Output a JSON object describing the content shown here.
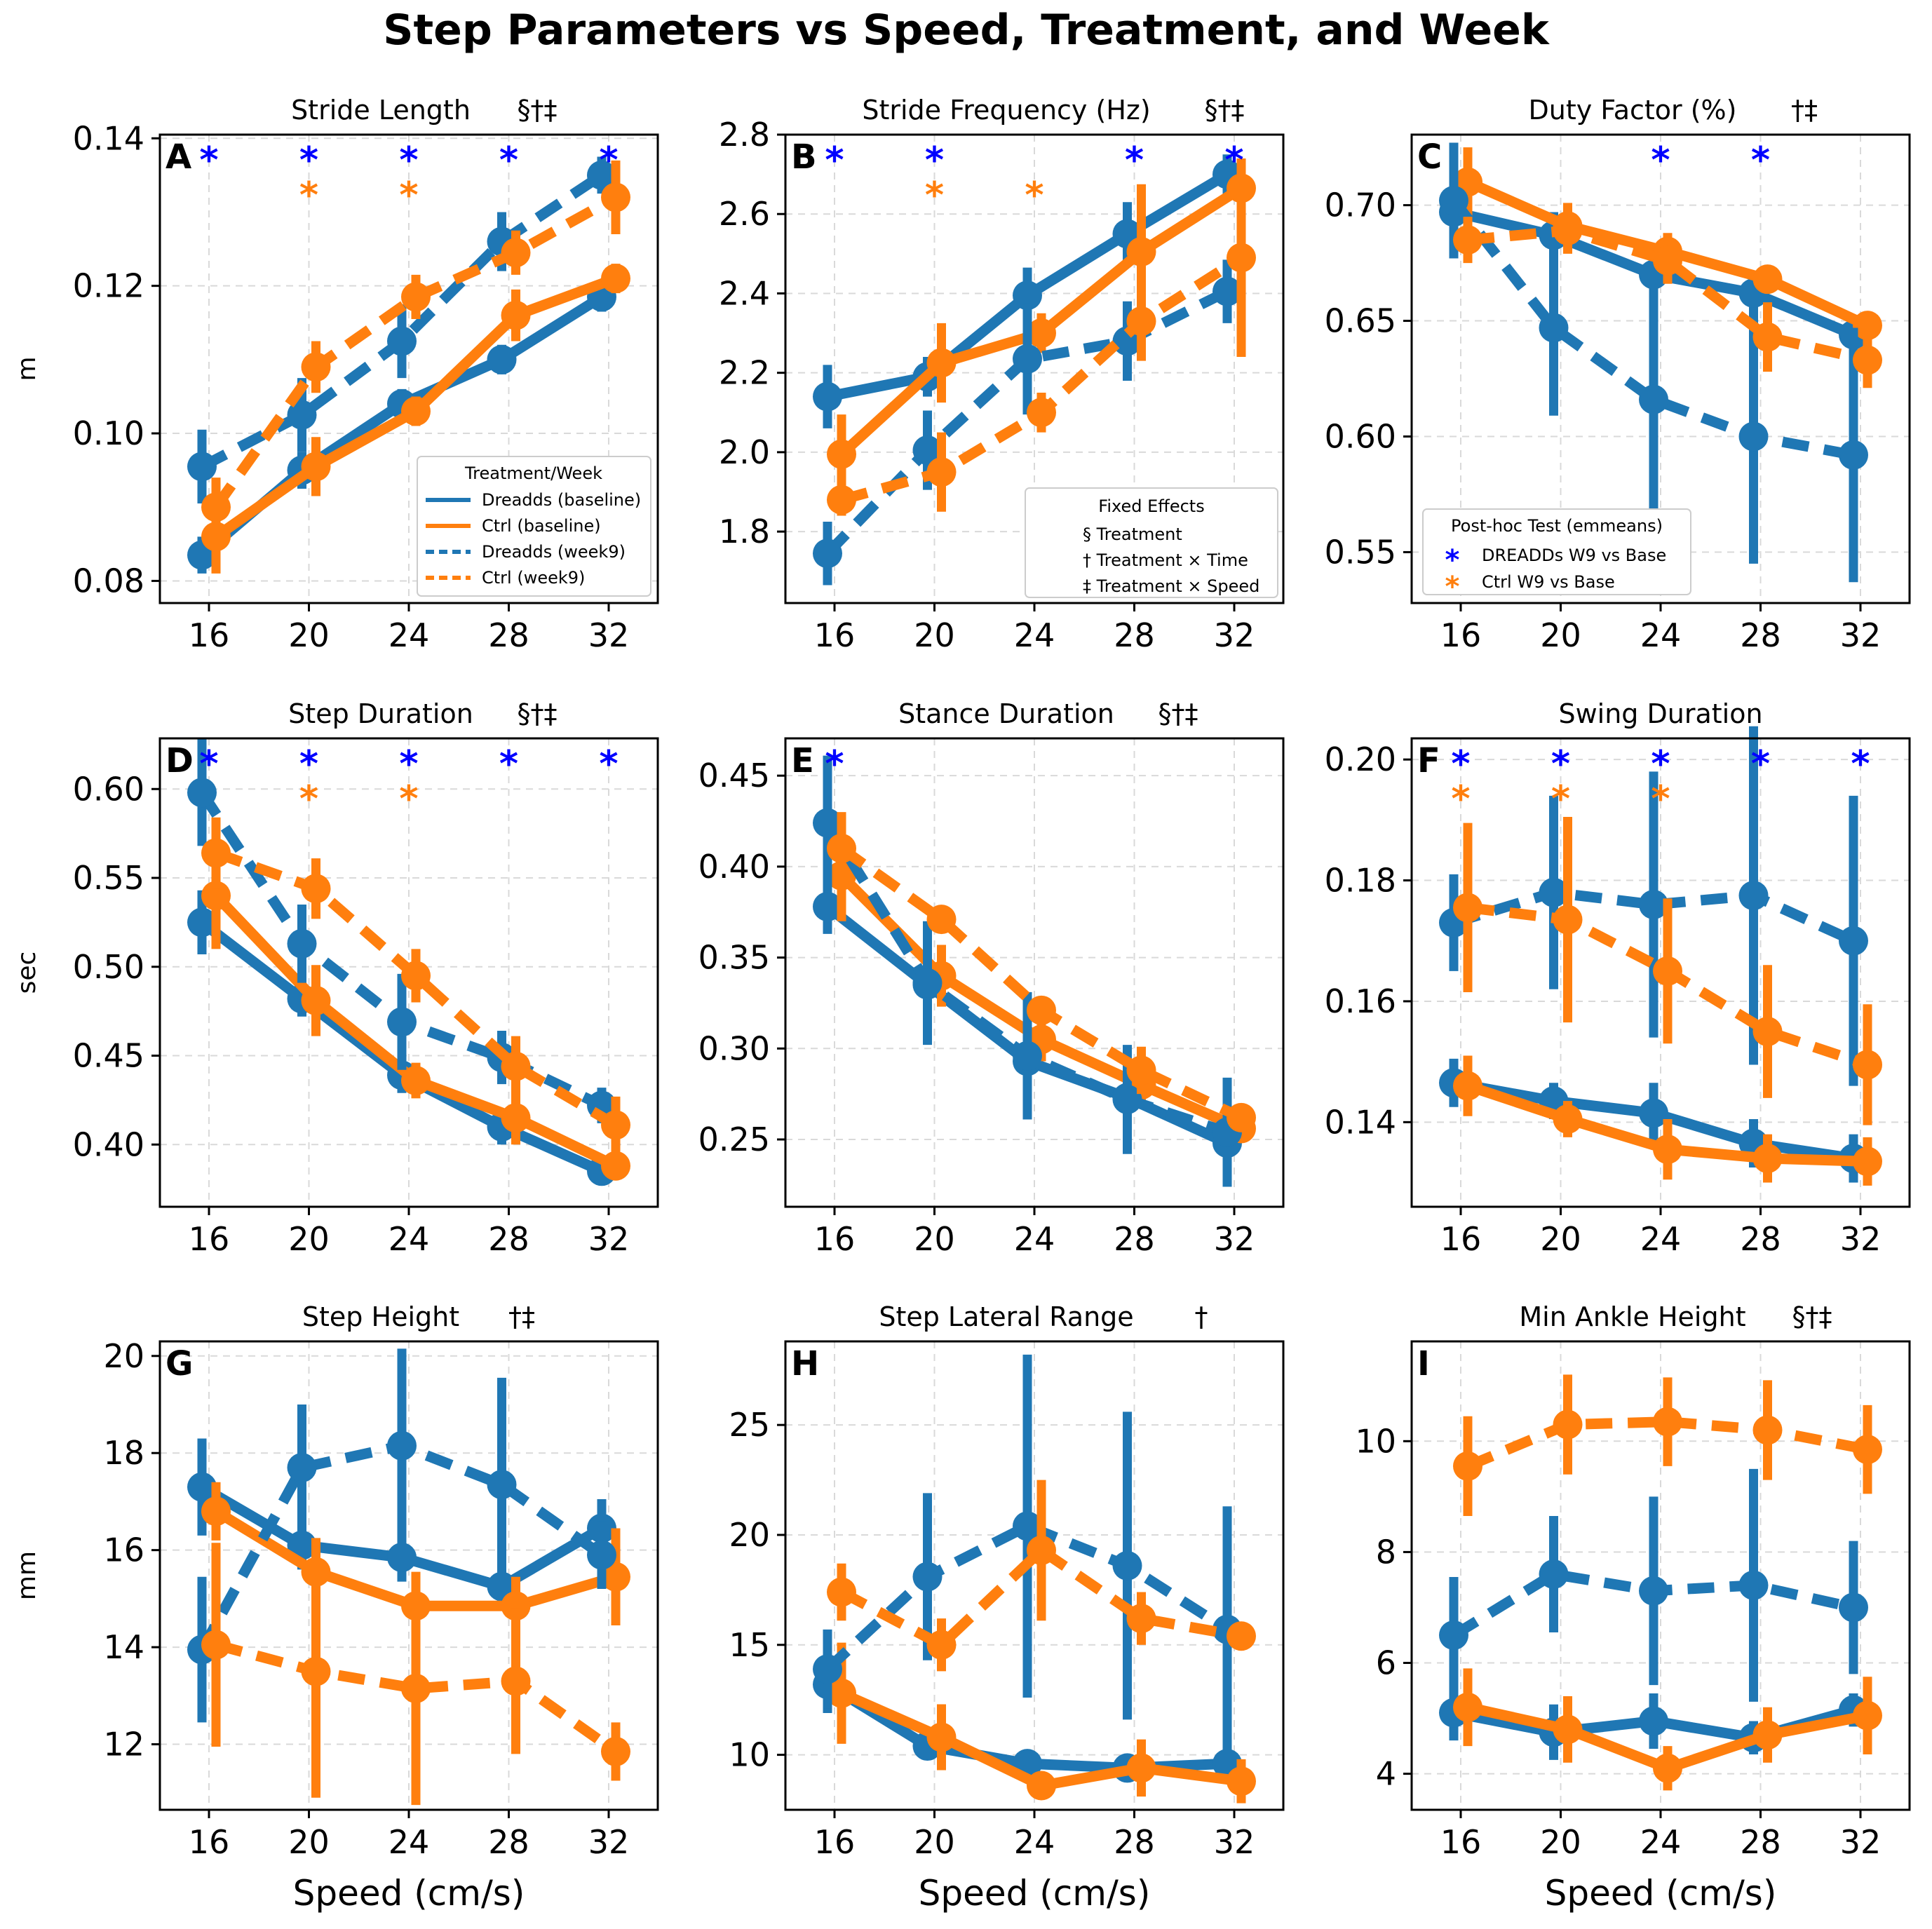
{
  "figure": {
    "title": "Step Parameters vs Speed, Treatment, and Week"
  },
  "colors": {
    "dreadds": "#1f77b4",
    "ctrl": "#ff7f0e",
    "sig_dreadds": "#0000ff",
    "sig_ctrl": "#ff7f0e",
    "grid": "#d9d9d9"
  },
  "legends": {
    "treatment_week": {
      "title": "Treatment/Week",
      "entries": [
        {
          "label": "Dreadds (baseline)",
          "series": "dreadds_base"
        },
        {
          "label": "Ctrl (baseline)",
          "series": "ctrl_base"
        },
        {
          "label": "Dreadds (week9)",
          "series": "dreadds_w9"
        },
        {
          "label": "Ctrl (week9)",
          "series": "ctrl_w9"
        }
      ]
    },
    "fixed_effects": {
      "title": "Fixed Effects",
      "entries": [
        "§ Treatment",
        "† Treatment × Time",
        "‡ Treatment × Speed"
      ]
    },
    "posthoc": {
      "title": "Post-hoc Test (emmeans)",
      "entries": [
        {
          "label": "DREADDs W9 vs Base",
          "marker": "*",
          "color": "sig_dreadds"
        },
        {
          "label": "Ctrl W9 vs Base",
          "marker": "*",
          "color": "sig_ctrl"
        }
      ]
    }
  },
  "chart_data": [
    {
      "id": "A",
      "letter": "A",
      "type": "line",
      "title": "Stride Length",
      "marks": "§†‡",
      "ylabel": "m",
      "xlabel": "",
      "ylim": [
        0.077,
        0.1405
      ],
      "yticks": [
        0.08,
        0.1,
        0.12,
        0.14
      ],
      "ytick_labels": [
        "0.08",
        "0.10",
        "0.12",
        "0.14"
      ],
      "categories": [
        "16",
        "20",
        "24",
        "28",
        "32"
      ],
      "series": [
        {
          "name": "Dreadds (baseline)",
          "values": [
            0.0835,
            0.095,
            0.104,
            0.11,
            0.1185
          ],
          "err": [
            0.0025,
            0.0025,
            0.002,
            0.002,
            0.002
          ]
        },
        {
          "name": "Ctrl (baseline)",
          "values": [
            0.086,
            0.0955,
            0.103,
            0.116,
            0.121
          ],
          "err": [
            0.005,
            0.004,
            0.002,
            0.0035,
            0.002
          ]
        },
        {
          "name": "Dreadds (week9)",
          "values": [
            0.0955,
            0.1025,
            0.1125,
            0.126,
            0.135
          ],
          "err": [
            0.005,
            0.005,
            0.005,
            0.004,
            0.0025
          ]
        },
        {
          "name": "Ctrl (week9)",
          "values": [
            0.09,
            0.109,
            0.1185,
            0.1245,
            0.132
          ],
          "err": [
            0.004,
            0.0035,
            0.003,
            0.003,
            0.005
          ]
        }
      ],
      "sig_dreadds": [
        "16",
        "20",
        "24",
        "28",
        "32"
      ],
      "sig_ctrl": [
        "20",
        "24"
      ],
      "legend": "treatment_week"
    },
    {
      "id": "B",
      "letter": "B",
      "type": "line",
      "title": "Stride Frequency (Hz)",
      "marks": "§†‡",
      "ylabel": "",
      "xlabel": "",
      "ylim": [
        1.62,
        2.8
      ],
      "yticks": [
        1.8,
        2.0,
        2.2,
        2.4,
        2.6,
        2.8
      ],
      "ytick_labels": [
        "1.8",
        "2.0",
        "2.2",
        "2.4",
        "2.6",
        "2.8"
      ],
      "categories": [
        "16",
        "20",
        "24",
        "28",
        "32"
      ],
      "series": [
        {
          "name": "Dreadds (baseline)",
          "values": [
            2.14,
            2.19,
            2.395,
            2.55,
            2.7
          ],
          "err": [
            0.08,
            0.05,
            0.07,
            0.08,
            0.05
          ]
        },
        {
          "name": "Ctrl (baseline)",
          "values": [
            1.995,
            2.225,
            2.3,
            2.505,
            2.665
          ],
          "err": [
            0.1,
            0.1,
            0.05,
            0.17,
            0.07
          ]
        },
        {
          "name": "Dreadds (week9)",
          "values": [
            1.745,
            2.005,
            2.235,
            2.28,
            2.405
          ],
          "err": [
            0.08,
            0.1,
            0.14,
            0.1,
            0.08
          ]
        },
        {
          "name": "Ctrl (week9)",
          "values": [
            1.88,
            1.95,
            2.1,
            2.33,
            2.49
          ],
          "err": [
            0.04,
            0.1,
            0.05,
            0.1,
            0.25
          ]
        }
      ],
      "sig_dreadds": [
        "16",
        "20",
        "28",
        "32"
      ],
      "sig_ctrl": [
        "20",
        "24"
      ],
      "legend": "fixed_effects"
    },
    {
      "id": "C",
      "letter": "C",
      "type": "line",
      "title": "Duty Factor (%)",
      "marks": "†‡",
      "ylabel": "",
      "xlabel": "",
      "ylim": [
        0.528,
        0.7305
      ],
      "yticks": [
        0.55,
        0.6,
        0.65,
        0.7
      ],
      "ytick_labels": [
        "0.55",
        "0.60",
        "0.65",
        "0.70"
      ],
      "categories": [
        "16",
        "20",
        "24",
        "28",
        "32"
      ],
      "series": [
        {
          "name": "Dreadds (baseline)",
          "values": [
            0.697,
            0.687,
            0.67,
            0.662,
            0.644
          ],
          "err": [
            0.01,
            0.01,
            0.01,
            0.008,
            0.006
          ]
        },
        {
          "name": "Ctrl (baseline)",
          "values": [
            0.71,
            0.691,
            0.68,
            0.668,
            0.648
          ],
          "err": [
            0.015,
            0.01,
            0.008,
            0.005,
            0.006
          ]
        },
        {
          "name": "Dreadds (week9)",
          "values": [
            0.702,
            0.647,
            0.616,
            0.6,
            0.592
          ],
          "err": [
            0.025,
            0.038,
            0.06,
            0.055,
            0.055
          ]
        },
        {
          "name": "Ctrl (week9)",
          "values": [
            0.685,
            0.689,
            0.676,
            0.643,
            0.633
          ],
          "err": [
            0.01,
            0.01,
            0.01,
            0.015,
            0.012
          ]
        }
      ],
      "sig_dreadds": [
        "24",
        "28"
      ],
      "sig_ctrl": [],
      "legend": "posthoc"
    },
    {
      "id": "D",
      "letter": "D",
      "type": "line",
      "title": "Step Duration",
      "marks": "§†‡",
      "ylabel": "sec",
      "xlabel": "",
      "ylim": [
        0.365,
        0.6285
      ],
      "yticks": [
        0.4,
        0.45,
        0.5,
        0.55,
        0.6
      ],
      "ytick_labels": [
        "0.40",
        "0.45",
        "0.50",
        "0.55",
        "0.60"
      ],
      "categories": [
        "16",
        "20",
        "24",
        "28",
        "32"
      ],
      "series": [
        {
          "name": "Dreadds (baseline)",
          "values": [
            0.525,
            0.482,
            0.439,
            0.41,
            0.385
          ],
          "err": [
            0.018,
            0.01,
            0.01,
            0.01,
            0.005
          ]
        },
        {
          "name": "Ctrl (baseline)",
          "values": [
            0.54,
            0.481,
            0.436,
            0.415,
            0.388
          ],
          "err": [
            0.03,
            0.02,
            0.01,
            0.015,
            0.007
          ]
        },
        {
          "name": "Dreadds (week9)",
          "values": [
            0.598,
            0.513,
            0.469,
            0.449,
            0.422
          ],
          "err": [
            0.03,
            0.022,
            0.027,
            0.015,
            0.01
          ]
        },
        {
          "name": "Ctrl (week9)",
          "values": [
            0.564,
            0.544,
            0.495,
            0.444,
            0.411
          ],
          "err": [
            0.02,
            0.017,
            0.015,
            0.017,
            0.016
          ]
        }
      ],
      "sig_dreadds": [
        "16",
        "20",
        "24",
        "28",
        "32"
      ],
      "sig_ctrl": [
        "20",
        "24"
      ],
      "legend": ""
    },
    {
      "id": "E",
      "letter": "E",
      "type": "line",
      "title": "Stance Duration",
      "marks": "§†‡",
      "ylabel": "",
      "xlabel": "",
      "ylim": [
        0.213,
        0.4705
      ],
      "yticks": [
        0.25,
        0.3,
        0.35,
        0.4,
        0.45
      ],
      "ytick_labels": [
        "0.25",
        "0.30",
        "0.35",
        "0.40",
        "0.45"
      ],
      "categories": [
        "16",
        "20",
        "24",
        "28",
        "32"
      ],
      "series": [
        {
          "name": "Dreadds (baseline)",
          "values": [
            0.378,
            0.335,
            0.293,
            0.273,
            0.248
          ],
          "err": [
            0.015,
            0.01,
            0.01,
            0.01,
            0.008
          ]
        },
        {
          "name": "Ctrl (baseline)",
          "values": [
            0.395,
            0.34,
            0.305,
            0.28,
            0.256
          ],
          "err": [
            0.025,
            0.017,
            0.012,
            0.012,
            0.007
          ]
        },
        {
          "name": "Dreadds (week9)",
          "values": [
            0.424,
            0.336,
            0.296,
            0.272,
            0.254
          ],
          "err": [
            0.037,
            0.034,
            0.035,
            0.03,
            0.03
          ]
        },
        {
          "name": "Ctrl (week9)",
          "values": [
            0.41,
            0.371,
            0.321,
            0.288,
            0.262
          ],
          "err": [
            0.02,
            0.006,
            0.007,
            0.013,
            0.007
          ]
        }
      ],
      "sig_dreadds": [
        "16"
      ],
      "sig_ctrl": [],
      "legend": ""
    },
    {
      "id": "F",
      "letter": "F",
      "type": "line",
      "title": "Swing Duration",
      "marks": "",
      "ylabel": "",
      "xlabel": "",
      "ylim": [
        0.126,
        0.2035
      ],
      "yticks": [
        0.14,
        0.16,
        0.18,
        0.2
      ],
      "ytick_labels": [
        "0.14",
        "0.16",
        "0.18",
        "0.20"
      ],
      "categories": [
        "16",
        "20",
        "24",
        "28",
        "32"
      ],
      "series": [
        {
          "name": "Dreadds (baseline)",
          "values": [
            0.1465,
            0.1435,
            0.1415,
            0.1365,
            0.134
          ],
          "err": [
            0.004,
            0.003,
            0.005,
            0.004,
            0.004
          ]
        },
        {
          "name": "Ctrl (baseline)",
          "values": [
            0.146,
            0.1405,
            0.1355,
            0.134,
            0.1335
          ],
          "err": [
            0.005,
            0.003,
            0.005,
            0.004,
            0.004
          ]
        },
        {
          "name": "Dreadds (week9)",
          "values": [
            0.173,
            0.178,
            0.176,
            0.1775,
            0.17
          ],
          "err": [
            0.008,
            0.016,
            0.022,
            0.028,
            0.024
          ]
        },
        {
          "name": "Ctrl (week9)",
          "values": [
            0.1755,
            0.1735,
            0.165,
            0.155,
            0.1495
          ],
          "err": [
            0.014,
            0.017,
            0.012,
            0.011,
            0.01
          ]
        }
      ],
      "sig_dreadds": [
        "16",
        "20",
        "24",
        "28",
        "32"
      ],
      "sig_ctrl": [
        "16",
        "20",
        "24"
      ],
      "legend": ""
    },
    {
      "id": "G",
      "letter": "G",
      "type": "line",
      "title": "Step Height",
      "marks": "†‡",
      "ylabel": "mm",
      "xlabel": "Speed (cm/s)",
      "ylim": [
        10.65,
        20.3
      ],
      "yticks": [
        12,
        14,
        16,
        18,
        20
      ],
      "ytick_labels": [
        "12",
        "14",
        "16",
        "18",
        "20"
      ],
      "categories": [
        "16",
        "20",
        "24",
        "28",
        "32"
      ],
      "series": [
        {
          "name": "Dreadds (baseline)",
          "values": [
            17.3,
            16.1,
            15.85,
            15.25,
            16.45
          ],
          "err": [
            1.0,
            0.5,
            0.5,
            0.3,
            0.6
          ]
        },
        {
          "name": "Ctrl (baseline)",
          "values": [
            16.8,
            15.55,
            14.85,
            14.85,
            15.45
          ],
          "err": [
            0.6,
            0.7,
            0.7,
            0.6,
            1.0
          ]
        },
        {
          "name": "Dreadds (week9)",
          "values": [
            13.95,
            17.7,
            18.15,
            17.35,
            15.9
          ],
          "err": [
            1.5,
            1.3,
            2.0,
            2.2,
            0.7
          ]
        },
        {
          "name": "Ctrl (week9)",
          "values": [
            14.05,
            13.5,
            13.15,
            13.3,
            11.85
          ],
          "err": [
            2.1,
            2.6,
            2.4,
            1.5,
            0.6
          ]
        }
      ],
      "sig_dreadds": [],
      "sig_ctrl": [],
      "legend": ""
    },
    {
      "id": "H",
      "letter": "H",
      "type": "line",
      "title": "Step Lateral Range",
      "marks": "†",
      "ylabel": "",
      "xlabel": "Speed (cm/s)",
      "ylim": [
        7.5,
        28.8
      ],
      "yticks": [
        10,
        15,
        20,
        25
      ],
      "ytick_labels": [
        "10",
        "15",
        "20",
        "25"
      ],
      "categories": [
        "16",
        "20",
        "24",
        "28",
        "32"
      ],
      "series": [
        {
          "name": "Dreadds (baseline)",
          "values": [
            13.2,
            10.4,
            9.6,
            9.4,
            9.6
          ],
          "err": [
            1.3,
            0.5,
            0.3,
            0.3,
            0.3
          ]
        },
        {
          "name": "Ctrl (baseline)",
          "values": [
            12.8,
            10.8,
            8.6,
            9.4,
            8.8
          ],
          "err": [
            2.3,
            1.5,
            0.5,
            1.3,
            1.0
          ]
        },
        {
          "name": "Dreadds (week9)",
          "values": [
            13.9,
            18.1,
            20.4,
            18.6,
            15.7
          ],
          "err": [
            1.8,
            3.8,
            7.8,
            7.0,
            5.6
          ]
        },
        {
          "name": "Ctrl (week9)",
          "values": [
            17.4,
            15.0,
            19.3,
            16.2,
            15.4
          ],
          "err": [
            1.3,
            1.2,
            3.2,
            1.2,
            0.5
          ]
        }
      ],
      "sig_dreadds": [],
      "sig_ctrl": [],
      "legend": ""
    },
    {
      "id": "I",
      "letter": "I",
      "type": "line",
      "title": "Min Ankle Height",
      "marks": "§†‡",
      "ylabel": "",
      "xlabel": "Speed (cm/s)",
      "ylim": [
        3.35,
        11.8
      ],
      "yticks": [
        4,
        6,
        8,
        10
      ],
      "ytick_labels": [
        "4",
        "6",
        "8",
        "10"
      ],
      "categories": [
        "16",
        "20",
        "24",
        "28",
        "32"
      ],
      "series": [
        {
          "name": "Dreadds (baseline)",
          "values": [
            5.1,
            4.75,
            4.95,
            4.65,
            5.15
          ],
          "err": [
            0.5,
            0.5,
            0.5,
            0.3,
            0.3
          ]
        },
        {
          "name": "Ctrl (baseline)",
          "values": [
            5.2,
            4.8,
            4.1,
            4.7,
            5.05
          ],
          "err": [
            0.7,
            0.6,
            0.4,
            0.5,
            0.7
          ]
        },
        {
          "name": "Dreadds (week9)",
          "values": [
            6.5,
            7.6,
            7.3,
            7.4,
            7.0
          ],
          "err": [
            1.05,
            1.05,
            1.7,
            2.1,
            1.2
          ]
        },
        {
          "name": "Ctrl (week9)",
          "values": [
            9.55,
            10.3,
            10.35,
            10.2,
            9.85
          ],
          "err": [
            0.9,
            0.9,
            0.8,
            0.9,
            0.8
          ]
        }
      ],
      "sig_dreadds": [],
      "sig_ctrl": [],
      "legend": ""
    }
  ]
}
